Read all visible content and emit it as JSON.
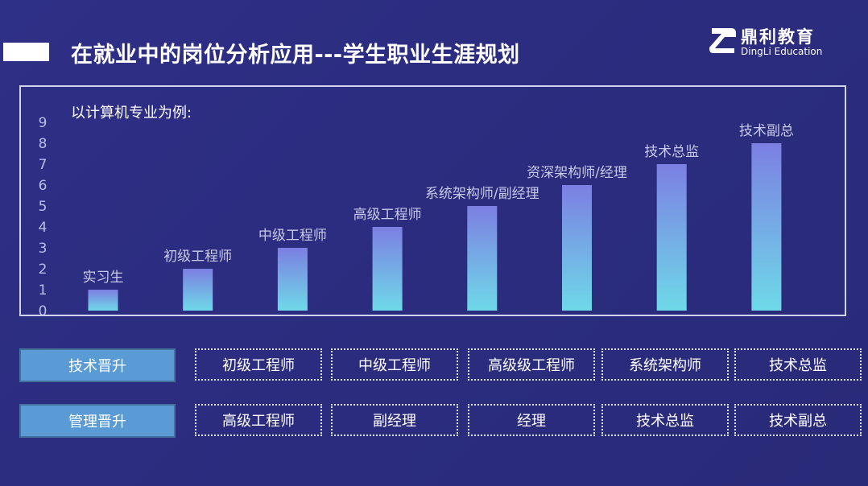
{
  "header": {
    "title": "在就业中的岗位分析应用---学生职业生涯规划",
    "logo": {
      "name": "鼎利教育",
      "sub": "DingLi Education"
    }
  },
  "chart_data": {
    "type": "bar",
    "title": "以计算机专业为例:",
    "categories": [
      "实习生",
      "初级工程师",
      "中级工程师",
      "高级工程师",
      "系统架构师/副经理",
      "资深架构师/经理",
      "技术总监",
      "技术副总"
    ],
    "values": [
      1,
      2,
      3,
      4,
      5,
      6,
      7,
      8
    ],
    "ylim": [
      0,
      9
    ],
    "yticks": [
      0,
      1,
      2,
      3,
      4,
      5,
      6,
      7,
      8,
      9
    ],
    "grid": false,
    "colors": {
      "bar_top": "#7c7fe2",
      "bar_bottom": "#6ed9e8",
      "tick": "#b9bde8",
      "data_label": "#c7cae8"
    }
  },
  "tracks": [
    {
      "label": "技术晋升",
      "steps": [
        "初级工程师",
        "中级工程师",
        "高级级工程师",
        "系统架构师",
        "技术总监"
      ]
    },
    {
      "label": "管理晋升",
      "steps": [
        "高级工程师",
        "副经理",
        "经理",
        "技术总监",
        "技术副总"
      ]
    }
  ]
}
